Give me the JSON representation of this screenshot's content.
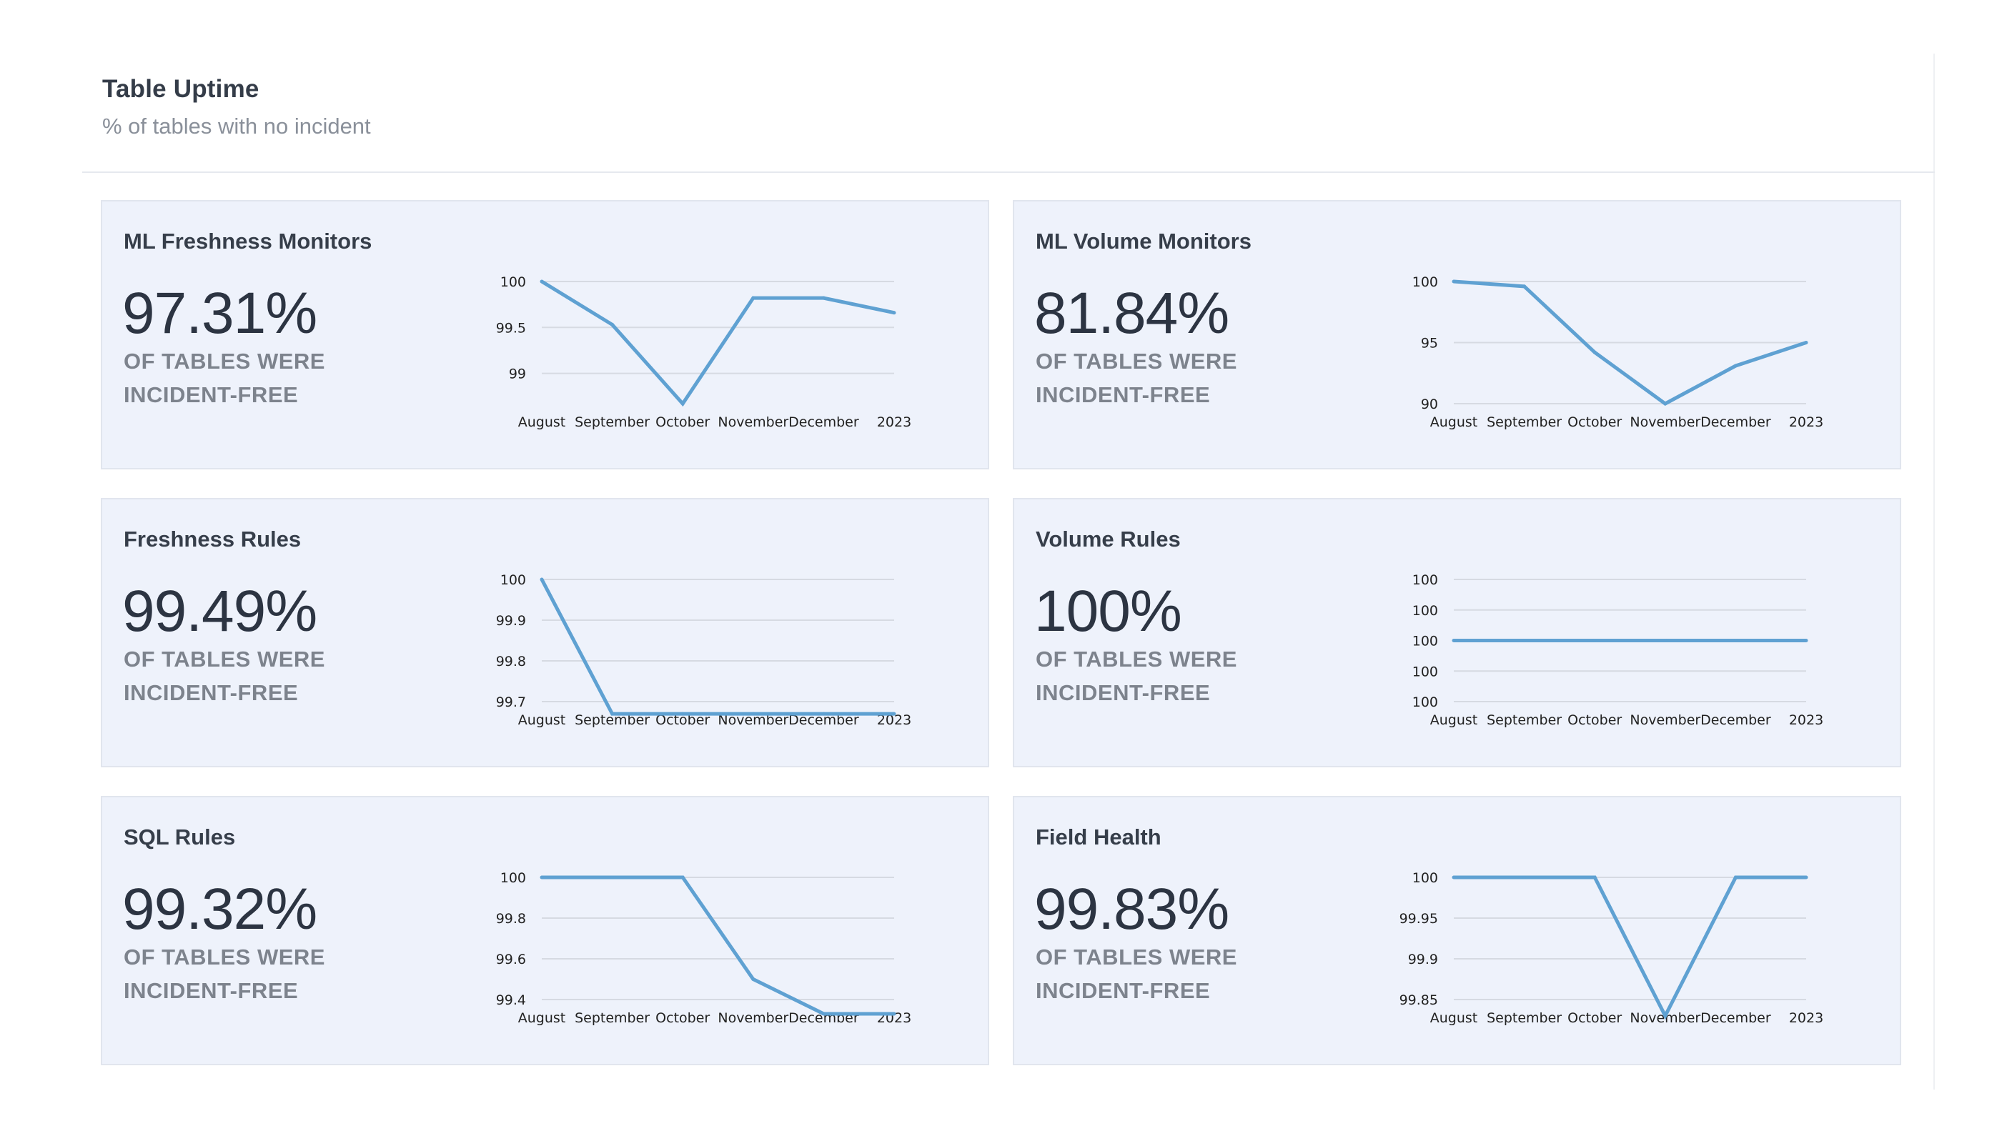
{
  "header": {
    "title": "Table Uptime",
    "subtitle": "% of tables with no incident"
  },
  "colors": {
    "line": "#5fa1d2",
    "grid": "#d6dae2",
    "card_bg": "#eef2fb",
    "tick_text": "#222222"
  },
  "caption_label": "OF TABLES WERE INCIDENT-FREE",
  "cards": [
    {
      "title": "ML Freshness Monitors",
      "value": "97.31%",
      "caption": "OF TABLES WERE INCIDENT-FREE"
    },
    {
      "title": "ML Volume Monitors",
      "value": "81.84%",
      "caption": "OF TABLES WERE INCIDENT-FREE"
    },
    {
      "title": "Freshness Rules",
      "value": "99.49%",
      "caption": "OF TABLES WERE INCIDENT-FREE"
    },
    {
      "title": "Volume Rules",
      "value": "100%",
      "caption": "OF TABLES WERE INCIDENT-FREE"
    },
    {
      "title": "SQL Rules",
      "value": "99.32%",
      "caption": "OF TABLES WERE INCIDENT-FREE"
    },
    {
      "title": "Field Health",
      "value": "99.83%",
      "caption": "OF TABLES WERE INCIDENT-FREE"
    }
  ],
  "chart_data": [
    {
      "type": "line",
      "title": "ML Freshness Monitors",
      "x": [
        "August",
        "September",
        "October",
        "November",
        "December",
        "2023"
      ],
      "series": [
        {
          "name": "ML Freshness Monitors",
          "values": [
            100,
            99.53,
            98.67,
            99.82,
            99.82,
            99.66
          ]
        }
      ],
      "yticks": [
        {
          "value": 100,
          "label": "100"
        },
        {
          "value": 99.5,
          "label": "99.5"
        },
        {
          "value": 99,
          "label": "99"
        }
      ],
      "ylim": [
        98.67,
        100
      ],
      "xlabel": "",
      "ylabel": ""
    },
    {
      "type": "line",
      "title": "ML Volume Monitors",
      "x": [
        "August",
        "September",
        "October",
        "November",
        "December",
        "2023"
      ],
      "series": [
        {
          "name": "ML Volume Monitors",
          "values": [
            100,
            99.6,
            94.2,
            90,
            93.1,
            95
          ]
        }
      ],
      "yticks": [
        {
          "value": 100,
          "label": "100"
        },
        {
          "value": 95,
          "label": "95"
        },
        {
          "value": 90,
          "label": "90"
        }
      ],
      "ylim": [
        90,
        100
      ],
      "xlabel": "",
      "ylabel": ""
    },
    {
      "type": "line",
      "title": "Freshness Rules",
      "x": [
        "August",
        "September",
        "October",
        "November",
        "December",
        "2023"
      ],
      "series": [
        {
          "name": "Freshness Rules",
          "values": [
            100,
            99.67,
            99.67,
            99.67,
            99.67,
            99.67
          ]
        }
      ],
      "yticks": [
        {
          "value": 100,
          "label": "100"
        },
        {
          "value": 99.9,
          "label": "99.9"
        },
        {
          "value": 99.8,
          "label": "99.8"
        },
        {
          "value": 99.7,
          "label": "99.7"
        }
      ],
      "ylim": [
        99.7,
        100
      ],
      "xlabel": "",
      "ylabel": ""
    },
    {
      "type": "line",
      "title": "Volume Rules",
      "x": [
        "August",
        "September",
        "October",
        "November",
        "December",
        "2023"
      ],
      "series": [
        {
          "name": "Volume Rules",
          "values": [
            100,
            100,
            100,
            100,
            100,
            100
          ]
        }
      ],
      "yticks": [
        {
          "value": 4,
          "label": "100"
        },
        {
          "value": 3,
          "label": "100"
        },
        {
          "value": 2,
          "label": "100"
        },
        {
          "value": 1,
          "label": "100"
        },
        {
          "value": 0,
          "label": "100"
        }
      ],
      "ylim": [
        0,
        4
      ],
      "series_plot_value": 2,
      "xlabel": "",
      "ylabel": ""
    },
    {
      "type": "line",
      "title": "SQL Rules",
      "x": [
        "August",
        "September",
        "October",
        "November",
        "December",
        "2023"
      ],
      "series": [
        {
          "name": "SQL Rules",
          "values": [
            100,
            100,
            100,
            99.5,
            99.33,
            99.33
          ]
        }
      ],
      "yticks": [
        {
          "value": 100,
          "label": "100"
        },
        {
          "value": 99.8,
          "label": "99.8"
        },
        {
          "value": 99.6,
          "label": "99.6"
        },
        {
          "value": 99.4,
          "label": "99.4"
        }
      ],
      "ylim": [
        99.4,
        100
      ],
      "xlabel": "",
      "ylabel": ""
    },
    {
      "type": "line",
      "title": "Field Health",
      "x": [
        "August",
        "September",
        "October",
        "November",
        "December",
        "2023"
      ],
      "series": [
        {
          "name": "Field Health",
          "values": [
            100,
            100,
            100,
            99.83,
            100,
            100
          ]
        }
      ],
      "yticks": [
        {
          "value": 100,
          "label": "100"
        },
        {
          "value": 99.95,
          "label": "99.95"
        },
        {
          "value": 99.9,
          "label": "99.9"
        },
        {
          "value": 99.85,
          "label": "99.85"
        }
      ],
      "ylim": [
        99.85,
        100
      ],
      "xlabel": "",
      "ylabel": ""
    }
  ]
}
